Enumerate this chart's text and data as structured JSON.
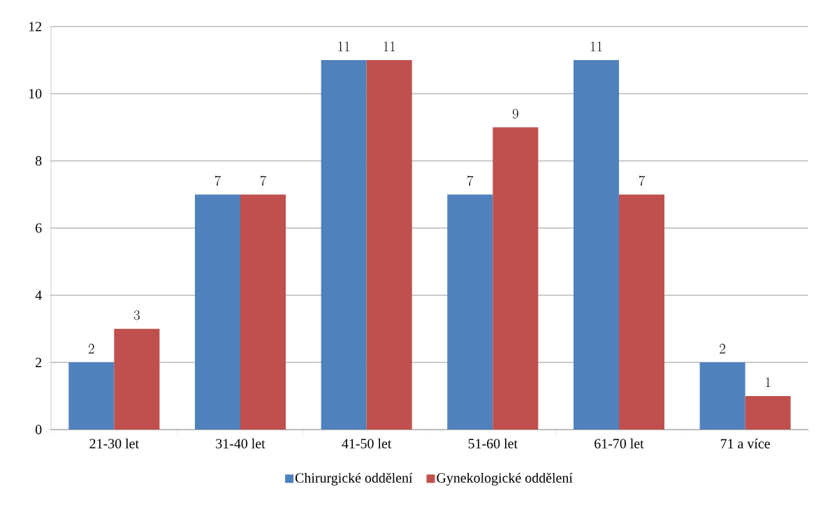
{
  "chart_data": {
    "type": "bar",
    "categories": [
      "21-30 let",
      "31-40 let",
      "41-50 let",
      "51-60 let",
      "61-70 let",
      "71 a více"
    ],
    "series": [
      {
        "name": "Chirurgické oddělení",
        "color": "#4f81bd",
        "values": [
          2,
          7,
          11,
          7,
          11,
          2
        ]
      },
      {
        "name": "Gynekologické oddělení",
        "color": "#c0504d",
        "values": [
          3,
          7,
          11,
          9,
          7,
          1
        ]
      }
    ],
    "ylim": [
      0,
      12
    ],
    "yticks": [
      0,
      2,
      4,
      6,
      8,
      10,
      12
    ],
    "grid": "y",
    "legend": "bottom",
    "data_labels": true
  }
}
